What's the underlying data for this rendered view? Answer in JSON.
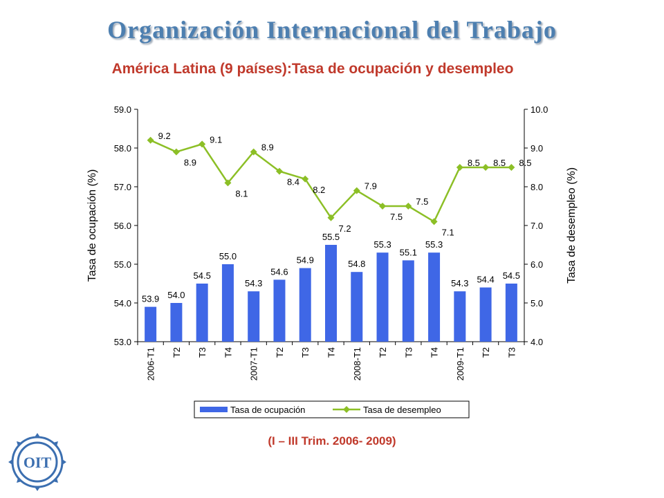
{
  "header": {
    "org_title": "Organización Internacional del Trabajo",
    "subtitle": "América Latina (9 países):Tasa de ocupación y desempleo",
    "period": "(I  – III Trim. 2006- 2009)"
  },
  "logo": {
    "text": "OIT",
    "icon": "ilo-emblem-icon"
  },
  "chart_data": {
    "type": "bar",
    "categories": [
      "2006-T1",
      "T2",
      "T3",
      "T4",
      "2007-T1",
      "T2",
      "T3",
      "T4",
      "2008-T1",
      "T2",
      "T3",
      "T4",
      "2009-T1",
      "T2",
      "T3"
    ],
    "series": [
      {
        "name": "Tasa de ocupación",
        "type": "bar",
        "axis": "left",
        "color": "#3f67e6",
        "values": [
          53.9,
          54.0,
          54.5,
          55.0,
          54.3,
          54.6,
          54.9,
          55.5,
          54.8,
          55.3,
          55.1,
          55.3,
          54.3,
          54.4,
          54.5
        ],
        "labels": [
          "53.9",
          "54.0",
          "54.5",
          "55.0",
          "54.3",
          "54.6",
          "54.9",
          "55.5",
          "54.8",
          "55.3",
          "55.1",
          "55.3",
          "54.3",
          "54.4",
          "54.5"
        ]
      },
      {
        "name": "Tasa de desempleo",
        "type": "line",
        "axis": "right",
        "color": "#8cbf26",
        "values": [
          9.2,
          8.9,
          9.1,
          8.1,
          8.9,
          8.4,
          8.2,
          7.2,
          7.9,
          7.5,
          7.5,
          7.1,
          8.5,
          8.5,
          8.5
        ],
        "labels": [
          "9.2",
          "8.9",
          "9.1",
          "8.1",
          "8.9",
          "8.4",
          "8.2",
          "7.2",
          "7.9",
          "7.5",
          "7.5",
          "7.1",
          "8.5",
          "8.5",
          "8.5"
        ]
      }
    ],
    "ylabel": "Tasa de ocupación (%)",
    "ylabel_right": "Tasa de desempleo (%)",
    "ylim": [
      53,
      59
    ],
    "ylim_right": [
      4,
      10
    ],
    "yticks": [
      "53.0",
      "54.0",
      "55.0",
      "56.0",
      "57.0",
      "58.0",
      "59.0"
    ],
    "yticks_right": [
      "4.0",
      "5.0",
      "6.0",
      "7.0",
      "8.0",
      "9.0",
      "10.0"
    ],
    "grid": false,
    "legend_position": "bottom"
  }
}
